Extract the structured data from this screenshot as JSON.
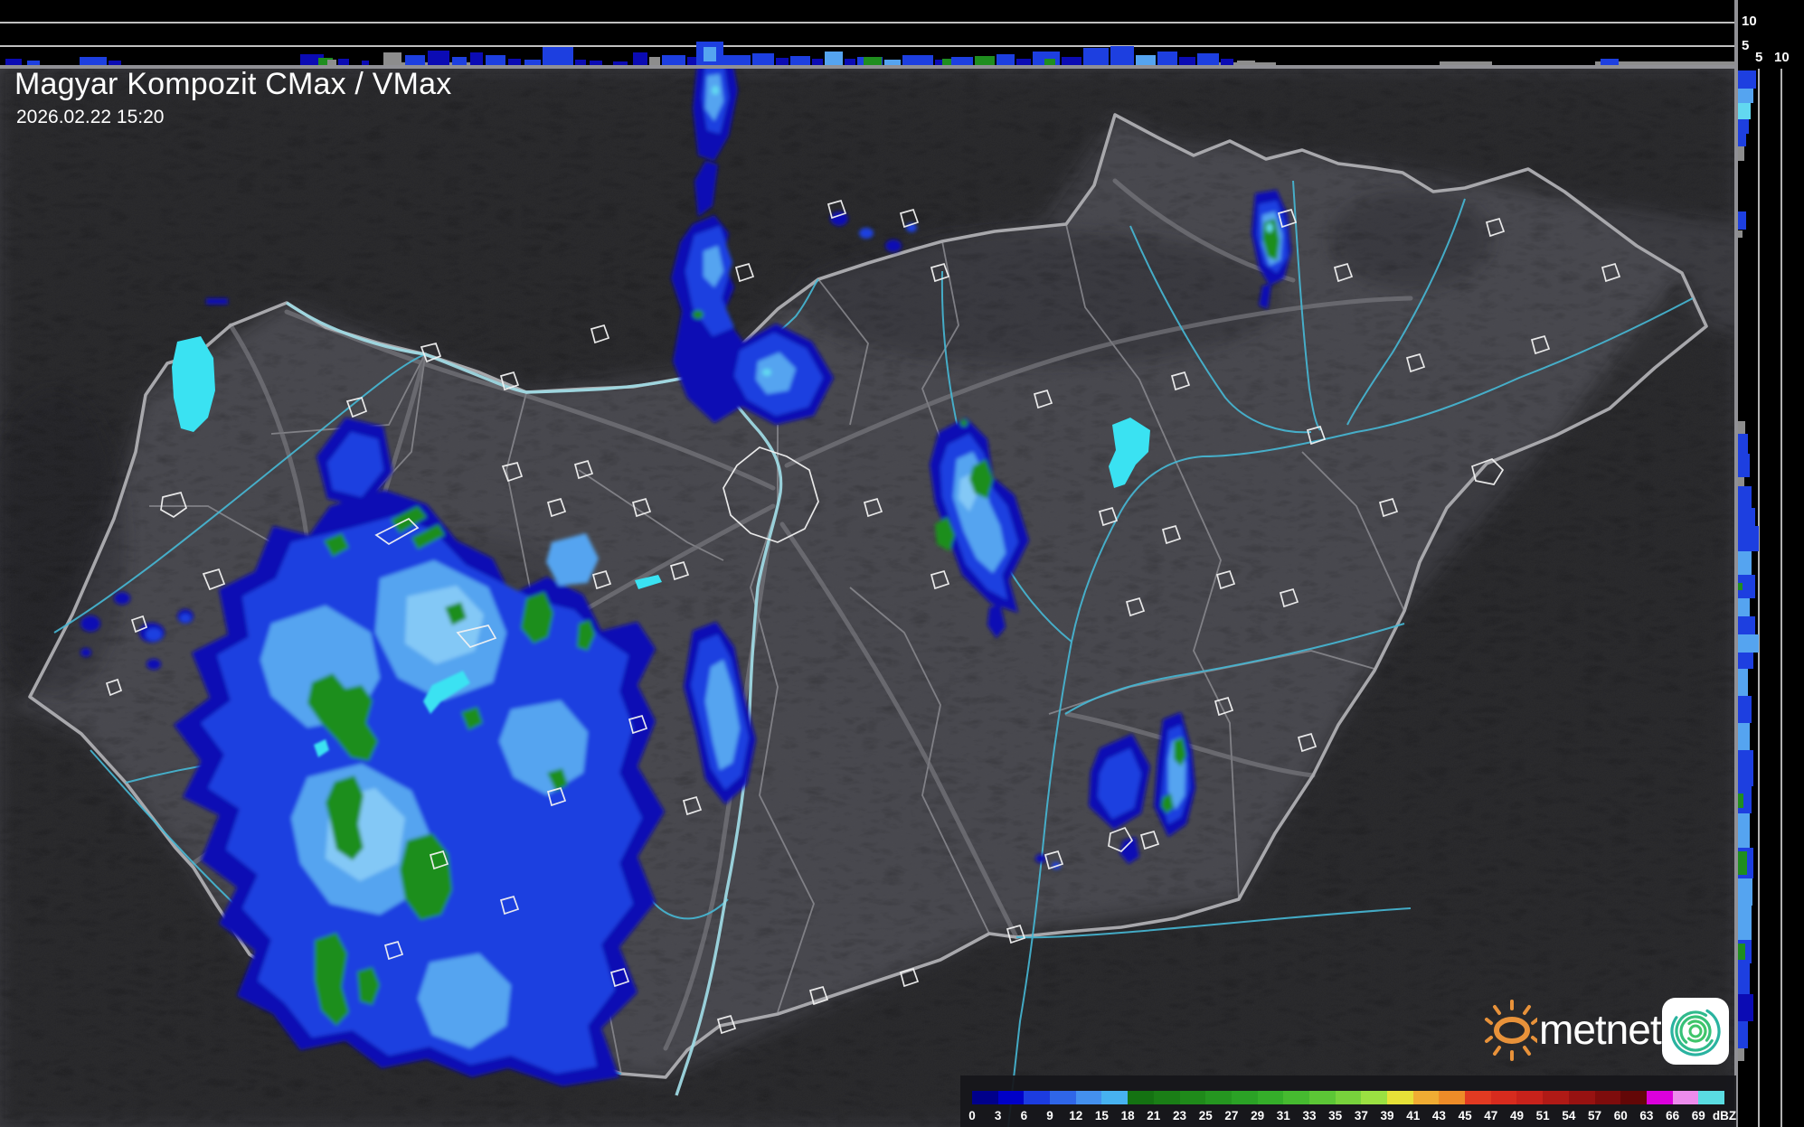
{
  "header": {
    "title": "Magyar Kompozit CMax / VMax",
    "timestamp": "2026.02.22 15:20"
  },
  "strips": {
    "top": {
      "description": "vertical projection (height, km)",
      "ticks": [
        "10",
        "5"
      ]
    },
    "right": {
      "description": "vertical projection (height, km)",
      "ticks": [
        "5",
        "10"
      ]
    }
  },
  "colorbar": {
    "unit": "dBZ",
    "labels": [
      "0",
      "3",
      "6",
      "9",
      "12",
      "15",
      "18",
      "21",
      "23",
      "25",
      "27",
      "29",
      "31",
      "33",
      "35",
      "37",
      "39",
      "41",
      "43",
      "45",
      "47",
      "49",
      "51",
      "54",
      "57",
      "60",
      "63",
      "66",
      "69",
      "dBZ"
    ],
    "colors": [
      "#00008b",
      "#0000c8",
      "#1c3ce0",
      "#2f66e8",
      "#4490ee",
      "#47b2f0",
      "#147212",
      "#1a7e16",
      "#1f8a1a",
      "#259620",
      "#2ba226",
      "#35ae2a",
      "#46ba30",
      "#5cc636",
      "#78d23c",
      "#9be042",
      "#e6e138",
      "#f0ac33",
      "#ee8c28",
      "#e23a22",
      "#d72b1e",
      "#c8221b",
      "#b01a16",
      "#971211",
      "#7e0c0c",
      "#630707",
      "#dc00dc",
      "#ec8cec",
      "#5adce2"
    ]
  },
  "logo": {
    "text": "metnet",
    "sun_color": "#e8923a",
    "spiral_color_outer": "#2ab3a0",
    "spiral_color_inner": "#3fc56a"
  },
  "map": {
    "region": "Hungary radar composite",
    "colors": {
      "terrain": "#3b3b40",
      "country_fill": "#4a4a50",
      "country_border": "#a8a8ac",
      "county_border": "#8b8b90",
      "road": "#77777d",
      "river": "#46b9d6",
      "lake": "#3ae2f2",
      "city_outline": "#f2f2f2",
      "echo_navy": "#0b0bb4",
      "echo_blue": "#1d3fe0",
      "echo_light": "#55a4f0",
      "echo_pale": "#83c8f6",
      "echo_green": "#1f8e1f",
      "clutter_gray": "#8d8d8d"
    }
  }
}
